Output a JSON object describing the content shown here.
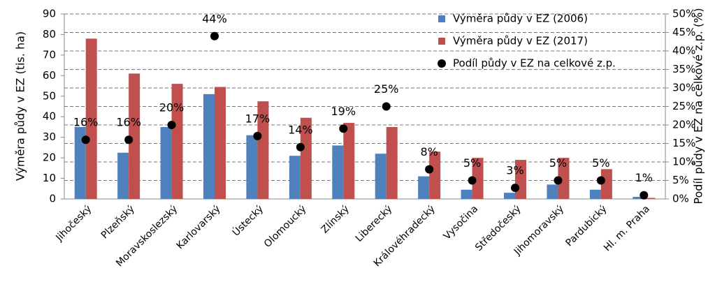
{
  "chart_data": {
    "type": "bar",
    "y_label": "Výměra půdy v EZ (tis. ha)",
    "y2_label": "Podíl půdy v EZ na celkové z.p. (%)",
    "categories": [
      "Jihočeský",
      "Plzeňský",
      "Moravskoslezský",
      "Karlovarský",
      "Ústecký",
      "Olomoucký",
      "Zlínský",
      "Liberecký",
      "Královéhradecký",
      "Vysočina",
      "Středočeský",
      "Jihomoravský",
      "Pardubický",
      "Hl. m. Praha"
    ],
    "series": [
      {
        "name": "Výměra půdy v EZ (2006)",
        "color": "#4f81bd",
        "type": "bar",
        "values": [
          35,
          22.5,
          35,
          51,
          31,
          21,
          26,
          22,
          11,
          4.5,
          3,
          7,
          4.5,
          1
        ]
      },
      {
        "name": "Výměra půdy v EZ (2017)",
        "color": "#c0504d",
        "type": "bar",
        "values": [
          78,
          61,
          56,
          54.5,
          47.5,
          39.5,
          37,
          35,
          23,
          20,
          19,
          20,
          14.5,
          0.5
        ]
      },
      {
        "name": "Podíl půdy v EZ na celkové z.p.",
        "color": "#000000",
        "type": "scatter",
        "axis": "y2",
        "values": [
          16,
          16,
          20,
          44,
          17,
          14,
          19,
          25,
          8,
          5,
          3,
          5,
          5,
          1
        ],
        "value_labels": [
          "16%",
          "16%",
          "20%",
          "44%",
          "17%",
          "14%",
          "19%",
          "25%",
          "8%",
          "5%",
          "3%",
          "5%",
          "5%",
          "1%"
        ]
      }
    ],
    "ylim": [
      0,
      90
    ],
    "yticks": [
      0,
      10,
      20,
      30,
      40,
      50,
      60,
      70,
      80,
      90
    ],
    "y2lim": [
      0,
      50
    ],
    "y2ticks": [
      {
        "value": 0,
        "label": "0%"
      },
      {
        "value": 5,
        "label": "5%"
      },
      {
        "value": 10,
        "label": "10%"
      },
      {
        "value": 15,
        "label": "15%"
      },
      {
        "value": 20,
        "label": "20%"
      },
      {
        "value": 25,
        "label": "25%"
      },
      {
        "value": 30,
        "label": "30%"
      },
      {
        "value": 35,
        "label": "35%"
      },
      {
        "value": 40,
        "label": "40%"
      },
      {
        "value": 45,
        "label": "45%"
      },
      {
        "value": 50,
        "label": "50%"
      }
    ],
    "grid": true
  }
}
